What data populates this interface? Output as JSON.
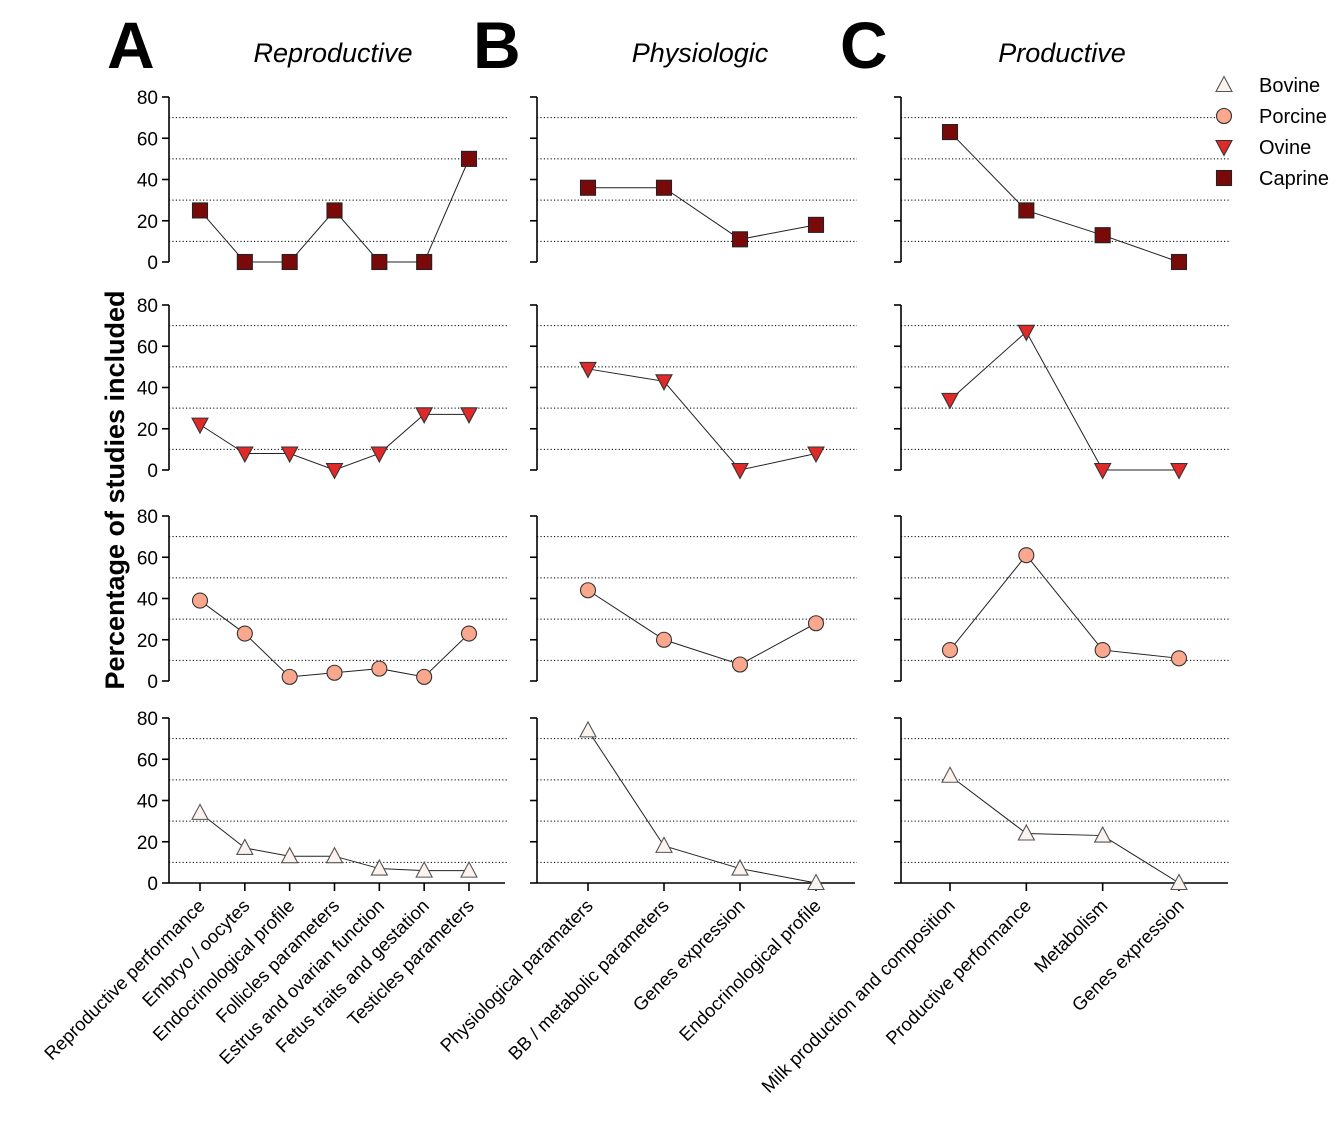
{
  "figure": {
    "ylabel": "Percentage of studies included",
    "panels": [
      {
        "letter": "A",
        "title": "Reproductive"
      },
      {
        "letter": "B",
        "title": "Physiologic"
      },
      {
        "letter": "C",
        "title": "Productive"
      }
    ],
    "legend": [
      {
        "name": "Bovine",
        "marker": "triangle-up",
        "fill": "#fdf3ee",
        "stroke": "#555555"
      },
      {
        "name": "Porcine",
        "marker": "circle",
        "fill": "#f9a88e",
        "stroke": "#333333"
      },
      {
        "name": "Ovine",
        "marker": "triangle-down",
        "fill": "#e02a2a",
        "stroke": "#333333"
      },
      {
        "name": "Caprine",
        "marker": "square",
        "fill": "#7a0a0a",
        "stroke": "#222222"
      }
    ]
  },
  "chart_data": [
    {
      "type": "line",
      "panel": "A",
      "title": "Reproductive",
      "ylabel": "Percentage of studies included",
      "ylim": [
        0,
        80
      ],
      "yticks": [
        0,
        20,
        40,
        60,
        80
      ],
      "gridlines": [
        10,
        30,
        50,
        70
      ],
      "legend": "top-right",
      "categories": [
        "Reproductive performance",
        "Embryo / oocytes",
        "Endocrinological profile",
        "Follicles parameters",
        "Estrus and ovarian function",
        "Fetus traits and gestation",
        "Testicles parameters"
      ],
      "series": [
        {
          "name": "Caprine",
          "values": [
            25,
            0,
            0,
            25,
            0,
            0,
            50
          ]
        },
        {
          "name": "Ovine",
          "values": [
            22,
            8,
            8,
            0,
            8,
            27,
            27
          ]
        },
        {
          "name": "Porcine",
          "values": [
            39,
            23,
            2,
            4,
            6,
            2,
            23
          ]
        },
        {
          "name": "Bovine",
          "values": [
            34,
            17,
            13,
            13,
            7,
            6,
            6
          ]
        }
      ]
    },
    {
      "type": "line",
      "panel": "B",
      "title": "Physiologic",
      "ylim": [
        0,
        80
      ],
      "yticks": [
        0,
        20,
        40,
        60,
        80
      ],
      "gridlines": [
        10,
        30,
        50,
        70
      ],
      "categories": [
        "Physiological paramaters",
        "BB / metabolic parameters",
        "Genes expression",
        "Endocrinological profile"
      ],
      "series": [
        {
          "name": "Caprine",
          "values": [
            36,
            36,
            11,
            18
          ]
        },
        {
          "name": "Ovine",
          "values": [
            49,
            43,
            0,
            8
          ]
        },
        {
          "name": "Porcine",
          "values": [
            44,
            20,
            8,
            28
          ]
        },
        {
          "name": "Bovine",
          "values": [
            74,
            18,
            7,
            0
          ]
        }
      ]
    },
    {
      "type": "line",
      "panel": "C",
      "title": "Productive",
      "ylim": [
        0,
        80
      ],
      "yticks": [
        0,
        20,
        40,
        60,
        80
      ],
      "gridlines": [
        10,
        30,
        50,
        70
      ],
      "categories": [
        "Milk production and composition",
        "Productive performance",
        "Metabolism",
        "Genes expression"
      ],
      "series": [
        {
          "name": "Caprine",
          "values": [
            63,
            25,
            13,
            0
          ]
        },
        {
          "name": "Ovine",
          "values": [
            34,
            67,
            0,
            0
          ]
        },
        {
          "name": "Porcine",
          "values": [
            15,
            61,
            15,
            11
          ]
        },
        {
          "name": "Bovine",
          "values": [
            52,
            24,
            23,
            0
          ]
        }
      ]
    }
  ]
}
